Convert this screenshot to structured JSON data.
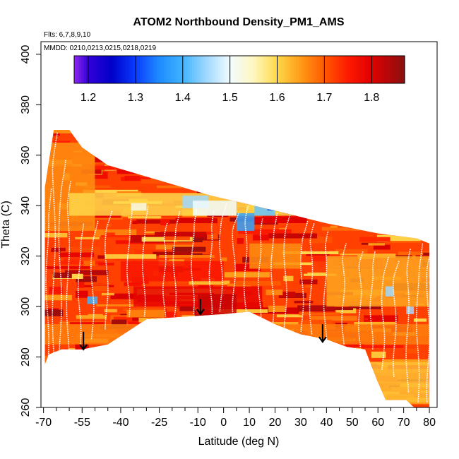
{
  "chart_data": {
    "type": "heatmap",
    "title": "ATOM2 Northbound Density_PM1_AMS",
    "flights_label": "Flts: 6,7,8,9,10",
    "dates_label": "MMDD: 0210,0213,0215,0218,0219",
    "xlabel": "Latitude (deg N)",
    "ylabel": "Theta (C)",
    "xlim": [
      -71,
      83
    ],
    "ylim": [
      260,
      405
    ],
    "x_ticks": [
      -70,
      -55,
      -40,
      -25,
      -10,
      0,
      10,
      20,
      30,
      40,
      50,
      60,
      70,
      80
    ],
    "x_minor_ticks": [
      -65,
      -60,
      -50,
      -45,
      -35,
      -30,
      -20,
      -15,
      -5,
      5,
      15,
      25,
      35,
      45,
      55,
      65,
      75
    ],
    "y_ticks": [
      260,
      280,
      300,
      320,
      340,
      360,
      380,
      400
    ],
    "colorbar": {
      "range": [
        1.17,
        1.87
      ],
      "ticks": [
        1.2,
        1.3,
        1.4,
        1.5,
        1.6,
        1.7,
        1.8
      ],
      "stops": [
        {
          "v": 1.17,
          "color": "#8f2bf0"
        },
        {
          "v": 1.2,
          "color": "#3200d9"
        },
        {
          "v": 1.25,
          "color": "#0000c8"
        },
        {
          "v": 1.3,
          "color": "#0a3cff"
        },
        {
          "v": 1.35,
          "color": "#1e8cff"
        },
        {
          "v": 1.4,
          "color": "#40b4ff"
        },
        {
          "v": 1.45,
          "color": "#9fd8ff"
        },
        {
          "v": 1.5,
          "color": "#f2fbff"
        },
        {
          "v": 1.55,
          "color": "#fff7c0"
        },
        {
          "v": 1.6,
          "color": "#ffd84a"
        },
        {
          "v": 1.65,
          "color": "#ff9b16"
        },
        {
          "v": 1.7,
          "color": "#ff5a00"
        },
        {
          "v": 1.75,
          "color": "#ff1a00"
        },
        {
          "v": 1.8,
          "color": "#e00000"
        },
        {
          "v": 1.87,
          "color": "#8a1010"
        }
      ]
    },
    "domain_top": [
      [
        -69.5,
        347
      ],
      [
        -66,
        370
      ],
      [
        -60,
        370
      ],
      [
        -55,
        363
      ],
      [
        -45,
        356
      ],
      [
        -25,
        350
      ],
      [
        -5,
        344
      ],
      [
        20,
        338
      ],
      [
        40,
        333
      ],
      [
        60,
        329
      ],
      [
        75,
        327
      ],
      [
        80,
        325
      ]
    ],
    "domain_bottom": [
      [
        -69.5,
        277
      ],
      [
        -68,
        281
      ],
      [
        -63,
        283
      ],
      [
        -55,
        283
      ],
      [
        -45,
        285
      ],
      [
        -30,
        295
      ],
      [
        -15,
        296
      ],
      [
        0,
        297
      ],
      [
        10,
        298
      ],
      [
        20,
        293
      ],
      [
        30,
        289
      ],
      [
        40,
        287
      ],
      [
        48,
        284
      ],
      [
        55,
        283
      ],
      [
        60,
        270
      ],
      [
        63,
        263
      ],
      [
        71,
        263
      ],
      [
        74,
        260
      ],
      [
        80,
        260
      ]
    ],
    "base_density": 1.72,
    "density_bands": [
      {
        "x": [
          -70,
          80
        ],
        "theta": [
          262,
          278
        ],
        "value": 1.62
      },
      {
        "x": [
          -70,
          80
        ],
        "theta": [
          285,
          293
        ],
        "value": 1.67
      },
      {
        "x": [
          -35,
          15
        ],
        "theta": [
          300,
          308
        ],
        "value": 1.79
      },
      {
        "x": [
          -10,
          5
        ],
        "theta": [
          296,
          305
        ],
        "value": 1.82
      },
      {
        "x": [
          -40,
          0
        ],
        "theta": [
          310,
          318
        ],
        "value": 1.76
      },
      {
        "x": [
          -70,
          -50
        ],
        "theta": [
          330,
          365
        ],
        "value": 1.66
      },
      {
        "x": [
          -60,
          40
        ],
        "theta": [
          336,
          345
        ],
        "value": 1.6
      },
      {
        "x": [
          40,
          80
        ],
        "theta": [
          300,
          320
        ],
        "value": 1.64
      },
      {
        "x": [
          10,
          30
        ],
        "theta": [
          315,
          325
        ],
        "value": 1.66
      }
    ],
    "low_density_patches": [
      {
        "x": [
          -16,
          -6
        ],
        "theta": [
          339,
          344
        ],
        "value": 1.45
      },
      {
        "x": [
          -12,
          5
        ],
        "theta": [
          336,
          342
        ],
        "value": 1.5
      },
      {
        "x": [
          5,
          12
        ],
        "theta": [
          330,
          337
        ],
        "value": 1.38
      },
      {
        "x": [
          12,
          20
        ],
        "theta": [
          336,
          343
        ],
        "value": 1.42
      },
      {
        "x": [
          17,
          24
        ],
        "theta": [
          338,
          345
        ],
        "value": 1.33
      },
      {
        "x": [
          -53,
          -49
        ],
        "theta": [
          301,
          304
        ],
        "value": 1.4
      },
      {
        "x": [
          63,
          66
        ],
        "theta": [
          304,
          308
        ],
        "value": 1.45
      },
      {
        "x": [
          71,
          74
        ],
        "theta": [
          297,
          300
        ],
        "value": 1.45
      },
      {
        "x": [
          -36,
          -30
        ],
        "theta": [
          338,
          341
        ],
        "value": 1.52
      }
    ],
    "profiles": [
      {
        "lat": -68.5,
        "theta_min": 279,
        "theta_max": 347
      },
      {
        "lat": -66.0,
        "theta_min": 281,
        "theta_max": 369
      },
      {
        "lat": -63.5,
        "theta_min": 283,
        "theta_max": 358
      },
      {
        "lat": -60.5,
        "theta_min": 283,
        "theta_max": 350
      },
      {
        "lat": -56.0,
        "theta_min": 285,
        "theta_max": 333
      },
      {
        "lat": -51.0,
        "theta_min": 287,
        "theta_max": 334
      },
      {
        "lat": -45.5,
        "theta_min": 291,
        "theta_max": 338
      },
      {
        "lat": -37.0,
        "theta_min": 296,
        "theta_max": 338
      },
      {
        "lat": -31.0,
        "theta_min": 296,
        "theta_max": 340
      },
      {
        "lat": -23.0,
        "theta_min": 296,
        "theta_max": 333
      },
      {
        "lat": -19.0,
        "theta_min": 296,
        "theta_max": 338
      },
      {
        "lat": -12.0,
        "theta_min": 297,
        "theta_max": 339
      },
      {
        "lat": -5.0,
        "theta_min": 297,
        "theta_max": 338
      },
      {
        "lat": -1.0,
        "theta_min": 298,
        "theta_max": 341
      },
      {
        "lat": 4.0,
        "theta_min": 297,
        "theta_max": 337
      },
      {
        "lat": 8.5,
        "theta_min": 296,
        "theta_max": 340
      },
      {
        "lat": 14.0,
        "theta_min": 295,
        "theta_max": 335
      },
      {
        "lat": 19.0,
        "theta_min": 293,
        "theta_max": 337
      },
      {
        "lat": 24.0,
        "theta_min": 291,
        "theta_max": 338
      },
      {
        "lat": 30.5,
        "theta_min": 290,
        "theta_max": 334
      },
      {
        "lat": 34.0,
        "theta_min": 289,
        "theta_max": 333
      },
      {
        "lat": 39.5,
        "theta_min": 287,
        "theta_max": 330
      },
      {
        "lat": 46.5,
        "theta_min": 285,
        "theta_max": 325
      },
      {
        "lat": 53.0,
        "theta_min": 284,
        "theta_max": 322
      },
      {
        "lat": 57.5,
        "theta_min": 283,
        "theta_max": 322
      },
      {
        "lat": 62.0,
        "theta_min": 275,
        "theta_max": 320
      },
      {
        "lat": 66.5,
        "theta_min": 272,
        "theta_max": 318
      },
      {
        "lat": 71.5,
        "theta_min": 266,
        "theta_max": 323
      },
      {
        "lat": 75.5,
        "theta_min": 262,
        "theta_max": 325
      },
      {
        "lat": 79.5,
        "theta_min": 262,
        "theta_max": 325
      }
    ],
    "arrows": [
      {
        "lat": -54.5,
        "theta_from": 290,
        "theta_to": 283
      },
      {
        "lat": -9.0,
        "theta_from": 303,
        "theta_to": 297
      },
      {
        "lat": 38.5,
        "theta_from": 293,
        "theta_to": 286
      }
    ]
  }
}
